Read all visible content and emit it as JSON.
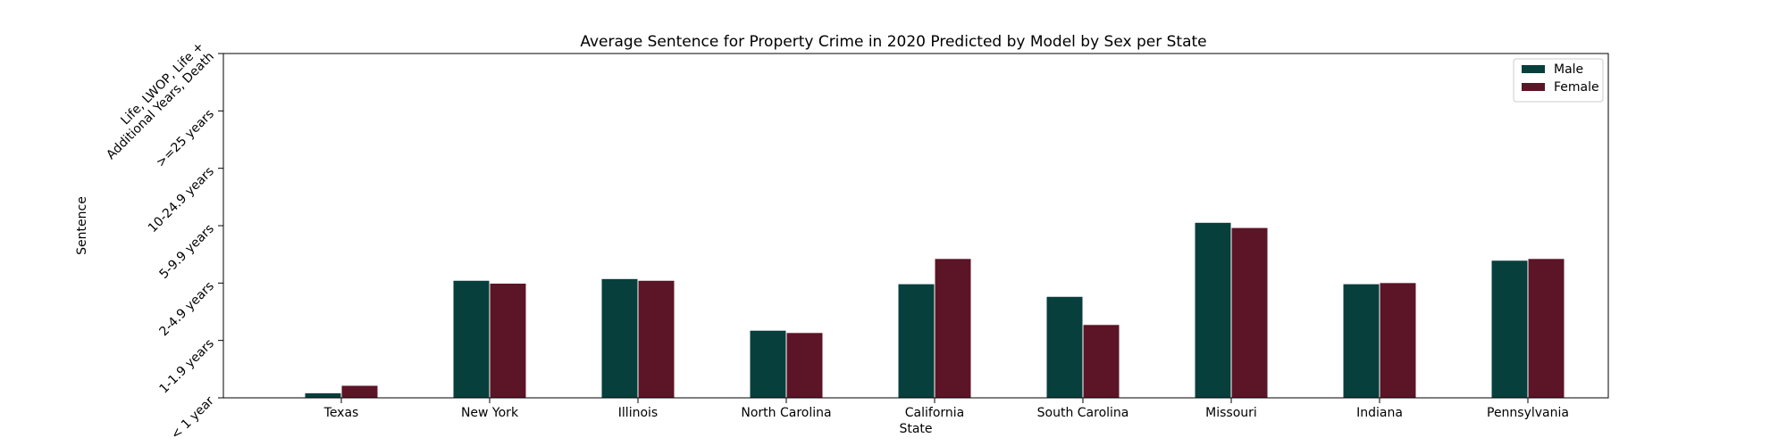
{
  "chart_data": {
    "type": "bar",
    "title": "Average Sentence for Property Crime in 2020 Predicted by Model by Sex per State",
    "xlabel": "State",
    "ylabel": "Sentence",
    "categories": [
      "Texas",
      "New York",
      "Illinois",
      "North Carolina",
      "California",
      "South Carolina",
      "Missouri",
      "Indiana",
      "Pennsylvania"
    ],
    "y_tick_labels": [
      "< 1 year",
      "1-1.9 years",
      "2-4.9 years",
      "5-9.9 years",
      "10-24.9 years",
      ">=25 years",
      "Life, LWOP, Life +\nAdditional Years, Death"
    ],
    "ylim": [
      0,
      6
    ],
    "series": [
      {
        "name": "Male",
        "color": "#073f3c",
        "values": [
          0.08,
          2.04,
          2.07,
          1.17,
          1.98,
          1.76,
          3.05,
          1.98,
          2.39
        ]
      },
      {
        "name": "Female",
        "color": "#5c1427",
        "values": [
          0.21,
          1.99,
          2.04,
          1.13,
          2.42,
          1.27,
          2.96,
          2.0,
          2.42
        ]
      }
    ],
    "legend_position": "top-right",
    "grid": false
  }
}
